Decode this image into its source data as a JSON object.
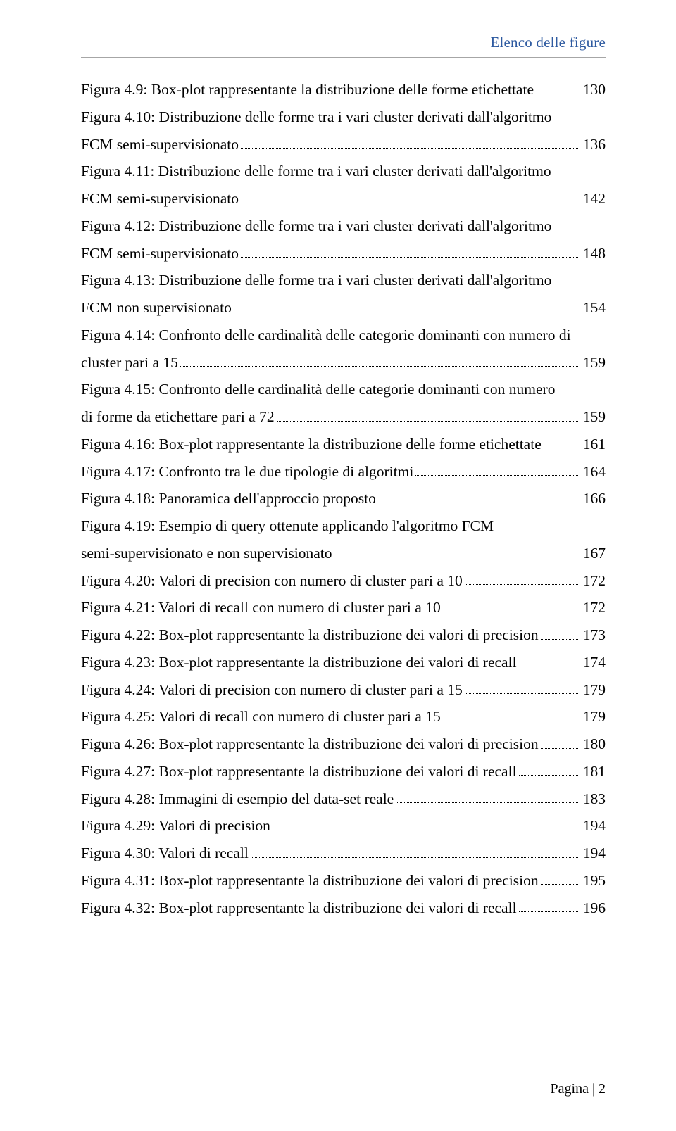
{
  "header": "Elenco delle figure",
  "footer_prefix": "Pagina ",
  "footer_sep": "| ",
  "footer_num": "2",
  "entries": [
    {
      "lines": [
        "Figura 4.9: Box-plot rappresentante la distribuzione delle forme etichettate"
      ],
      "page": "130"
    },
    {
      "lines": [
        "Figura 4.10: Distribuzione delle forme tra i vari cluster derivati dall'algoritmo",
        "FCM semi-supervisionato"
      ],
      "page": "136"
    },
    {
      "lines": [
        "Figura 4.11: Distribuzione delle forme tra i vari cluster derivati dall'algoritmo",
        "FCM semi-supervisionato"
      ],
      "page": "142"
    },
    {
      "lines": [
        "Figura 4.12: Distribuzione delle forme tra i vari cluster derivati dall'algoritmo",
        "FCM semi-supervisionato"
      ],
      "page": "148"
    },
    {
      "lines": [
        "Figura 4.13: Distribuzione delle forme tra i vari cluster derivati dall'algoritmo",
        "FCM non supervisionato"
      ],
      "page": "154"
    },
    {
      "lines": [
        "Figura 4.14: Confronto delle cardinalità delle categorie dominanti con numero di",
        "cluster pari a 15"
      ],
      "page": "159"
    },
    {
      "lines": [
        "Figura 4.15: Confronto delle cardinalità delle categorie dominanti con numero",
        "di forme da etichettare pari a 72"
      ],
      "page": "159"
    },
    {
      "lines": [
        "Figura 4.16: Box-plot rappresentante la distribuzione delle forme etichettate"
      ],
      "page": "161"
    },
    {
      "lines": [
        "Figura 4.17: Confronto tra le due tipologie di algoritmi"
      ],
      "page": "164"
    },
    {
      "lines": [
        "Figura 4.18: Panoramica dell'approccio proposto"
      ],
      "page": "166"
    },
    {
      "lines": [
        "Figura 4.19: Esempio di query  ottenute applicando l'algoritmo FCM",
        "semi-supervisionato e non supervisionato"
      ],
      "page": "167"
    },
    {
      "lines": [
        "Figura 4.20: Valori di precision con numero di cluster pari a 10"
      ],
      "page": "172"
    },
    {
      "lines": [
        "Figura 4.21: Valori di recall con numero di cluster pari a 10"
      ],
      "page": "172"
    },
    {
      "lines": [
        "Figura 4.22: Box-plot rappresentante la distribuzione dei valori di precision"
      ],
      "page": "173"
    },
    {
      "lines": [
        "Figura 4.23: Box-plot rappresentante la distribuzione dei valori di recall"
      ],
      "page": "174"
    },
    {
      "lines": [
        "Figura 4.24: Valori di precision con numero di cluster pari a 15"
      ],
      "page": "179"
    },
    {
      "lines": [
        "Figura 4.25: Valori di recall con numero di cluster pari a 15"
      ],
      "page": "179"
    },
    {
      "lines": [
        "Figura 4.26: Box-plot rappresentante la distribuzione dei valori di precision"
      ],
      "page": "180"
    },
    {
      "lines": [
        "Figura 4.27: Box-plot rappresentante la distribuzione dei valori di recall"
      ],
      "page": "181"
    },
    {
      "lines": [
        "Figura 4.28: Immagini di esempio del data-set reale"
      ],
      "page": "183"
    },
    {
      "lines": [
        "Figura 4.29: Valori di precision"
      ],
      "page": "194"
    },
    {
      "lines": [
        "Figura 4.30: Valori di recall"
      ],
      "page": "194"
    },
    {
      "lines": [
        "Figura 4.31: Box-plot rappresentante la distribuzione dei valori di precision"
      ],
      "page": "195"
    },
    {
      "lines": [
        "Figura 4.32: Box-plot rappresentante la distribuzione dei valori di recall"
      ],
      "page": "196"
    }
  ]
}
